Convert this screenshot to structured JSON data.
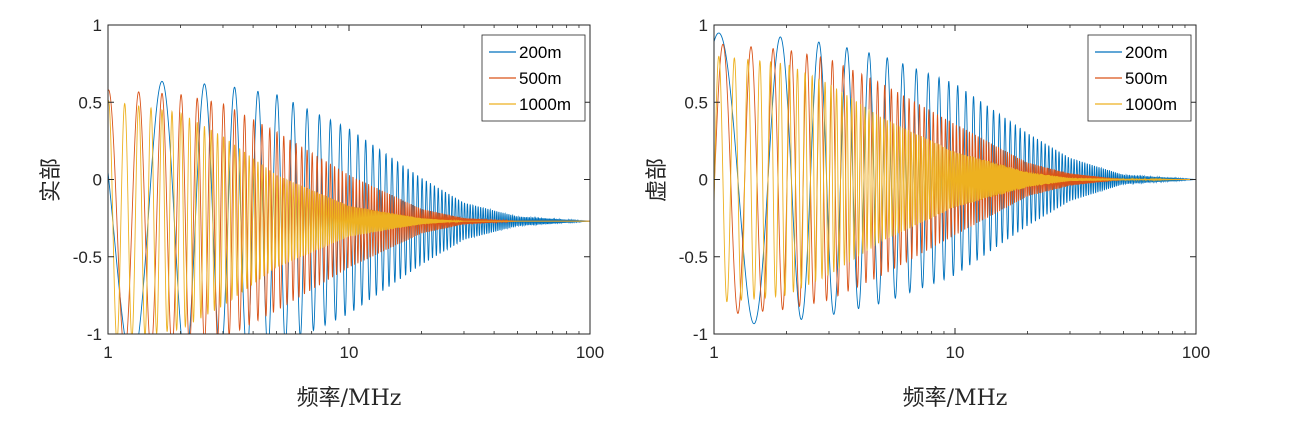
{
  "chart_data": [
    {
      "type": "line",
      "xscale": "log",
      "xlim": [
        1,
        100
      ],
      "ylim": [
        -1,
        1
      ],
      "xticks": [
        1,
        10,
        100
      ],
      "xtick_labels": [
        "1",
        "10",
        "100"
      ],
      "yticks": [
        -1,
        -0.5,
        0,
        0.5,
        1
      ],
      "ytick_labels": [
        "-1",
        "-0.5",
        "0",
        "0.5",
        "1"
      ],
      "xlabel": "频率/MHz",
      "ylabel": "实部",
      "component": "real",
      "asymptote": -0.27,
      "legend": "top-right",
      "grid": false,
      "series": [
        {
          "name": "200m",
          "color": "#0072BD",
          "envelope": [
            [
              1,
              0.92
            ],
            [
              2,
              0.9
            ],
            [
              3,
              0.88
            ],
            [
              5,
              0.82
            ],
            [
              10,
              0.6
            ],
            [
              20,
              0.28
            ],
            [
              30,
              0.12
            ],
            [
              50,
              0.03
            ],
            [
              100,
              0.0
            ]
          ]
        },
        {
          "name": "500m",
          "color": "#D95319",
          "envelope": [
            [
              1,
              0.85
            ],
            [
              2,
              0.82
            ],
            [
              3,
              0.76
            ],
            [
              5,
              0.58
            ],
            [
              10,
              0.3
            ],
            [
              20,
              0.08
            ],
            [
              30,
              0.02
            ],
            [
              50,
              0.0
            ],
            [
              100,
              0.0
            ]
          ]
        },
        {
          "name": "1000m",
          "color": "#EDB120",
          "envelope": [
            [
              1,
              0.78
            ],
            [
              2,
              0.7
            ],
            [
              3,
              0.55
            ],
            [
              5,
              0.3
            ],
            [
              10,
              0.1
            ],
            [
              20,
              0.02
            ],
            [
              30,
              0.0
            ],
            [
              100,
              0.0
            ]
          ]
        }
      ]
    },
    {
      "type": "line",
      "xscale": "log",
      "xlim": [
        1,
        100
      ],
      "ylim": [
        -1,
        1
      ],
      "xticks": [
        1,
        10,
        100
      ],
      "xtick_labels": [
        "1",
        "10",
        "100"
      ],
      "yticks": [
        -1,
        -0.5,
        0,
        0.5,
        1
      ],
      "ytick_labels": [
        "-1",
        "-0.5",
        "0",
        "0.5",
        "1"
      ],
      "xlabel": "频率/MHz",
      "ylabel": "虚部",
      "component": "imag",
      "asymptote": 0,
      "legend": "top-right",
      "grid": false,
      "series": [
        {
          "name": "200m",
          "color": "#0072BD",
          "envelope": [
            [
              1,
              0.95
            ],
            [
              2,
              0.92
            ],
            [
              3,
              0.88
            ],
            [
              5,
              0.8
            ],
            [
              10,
              0.62
            ],
            [
              20,
              0.3
            ],
            [
              30,
              0.14
            ],
            [
              50,
              0.03
            ],
            [
              100,
              0.0
            ]
          ]
        },
        {
          "name": "500m",
          "color": "#D95319",
          "envelope": [
            [
              1,
              0.88
            ],
            [
              2,
              0.84
            ],
            [
              3,
              0.78
            ],
            [
              5,
              0.62
            ],
            [
              10,
              0.36
            ],
            [
              20,
              0.11
            ],
            [
              30,
              0.04
            ],
            [
              50,
              0.0
            ],
            [
              100,
              0.0
            ]
          ]
        },
        {
          "name": "1000m",
          "color": "#EDB120",
          "envelope": [
            [
              1,
              0.8
            ],
            [
              2,
              0.75
            ],
            [
              3,
              0.62
            ],
            [
              5,
              0.4
            ],
            [
              10,
              0.18
            ],
            [
              20,
              0.05
            ],
            [
              30,
              0.01
            ],
            [
              100,
              0.0
            ]
          ]
        }
      ]
    }
  ]
}
